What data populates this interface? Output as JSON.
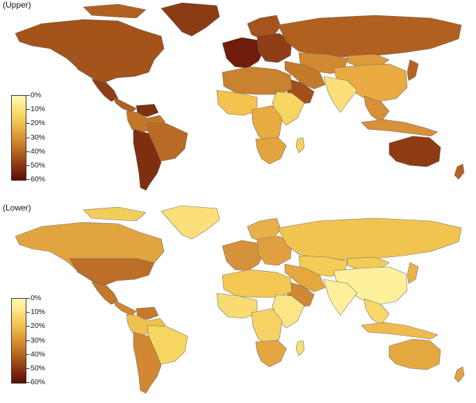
{
  "panels": {
    "upper": {
      "title": "(Upper)",
      "colors": {
        "north_america": "#a4531b",
        "greenland": "#8a3c14",
        "canada_islands": "#b1611f",
        "usa": "#a4531b",
        "mexico": "#8d3f15",
        "central_america": "#b25f20",
        "south_america_north": "#c17628",
        "venezuela": "#7f300f",
        "brazil": "#b86b24",
        "south_america_south": "#7f2f10",
        "western_europe": "#6f1d0a",
        "scandinavia": "#a6541d",
        "eastern_europe": "#8f3e16",
        "russia": "#b0601f",
        "central_asia": "#cf8a32",
        "middle_east": "#c37a2a",
        "arabia": "#a24f1a",
        "north_africa": "#c98230",
        "west_africa": "#f2c34d",
        "central_africa": "#e7ab42",
        "east_africa": "#f6d561",
        "southern_africa": "#e3a43e",
        "madagascar": "#f5d25e",
        "south_asia": "#fbe07a",
        "china": "#e9ab41",
        "mongolia": "#dd9b39",
        "japan": "#b6631f",
        "se_asia": "#d88f36",
        "indonesia": "#d6913a",
        "australia": "#8e3b13",
        "new_zealand": "#b4621f"
      }
    },
    "lower": {
      "title": "(Lower)",
      "colors": {
        "north_america": "#e2a440",
        "greenland": "#fbe07a",
        "canada_islands": "#f3cd5b",
        "usa": "#bd6f27",
        "mexico": "#c47828",
        "central_america": "#d28832",
        "south_america_north": "#f0c04c",
        "venezuela": "#c57a2a",
        "brazil": "#f6d561",
        "south_america_south": "#d28833",
        "western_europe": "#d5923a",
        "scandinavia": "#e8b04a",
        "eastern_europe": "#e0a040",
        "russia": "#f1c450",
        "central_asia": "#f4cc57",
        "middle_east": "#e5a83f",
        "arabia": "#d18834",
        "north_africa": "#f3c954",
        "west_africa": "#f8dc6f",
        "central_africa": "#f5d263",
        "east_africa": "#fbe685",
        "southern_africa": "#e4a641",
        "madagascar": "#f9de73",
        "south_asia": "#fdf09a",
        "china": "#fdf19e",
        "mongolia": "#f4cb57",
        "japan": "#eab44b",
        "se_asia": "#f7d868",
        "indonesia": "#efbb4e",
        "australia": "#e5a841",
        "new_zealand": "#e2a23f"
      }
    }
  },
  "legend": {
    "labels": [
      "0%",
      "10%",
      "20%",
      "30%",
      "40%",
      "50%",
      "60%"
    ],
    "gradient": [
      "#fffbb3",
      "#fbe07a",
      "#f0be4f",
      "#d99134",
      "#b8651f",
      "#8c3412",
      "#5a0d05"
    ]
  }
}
